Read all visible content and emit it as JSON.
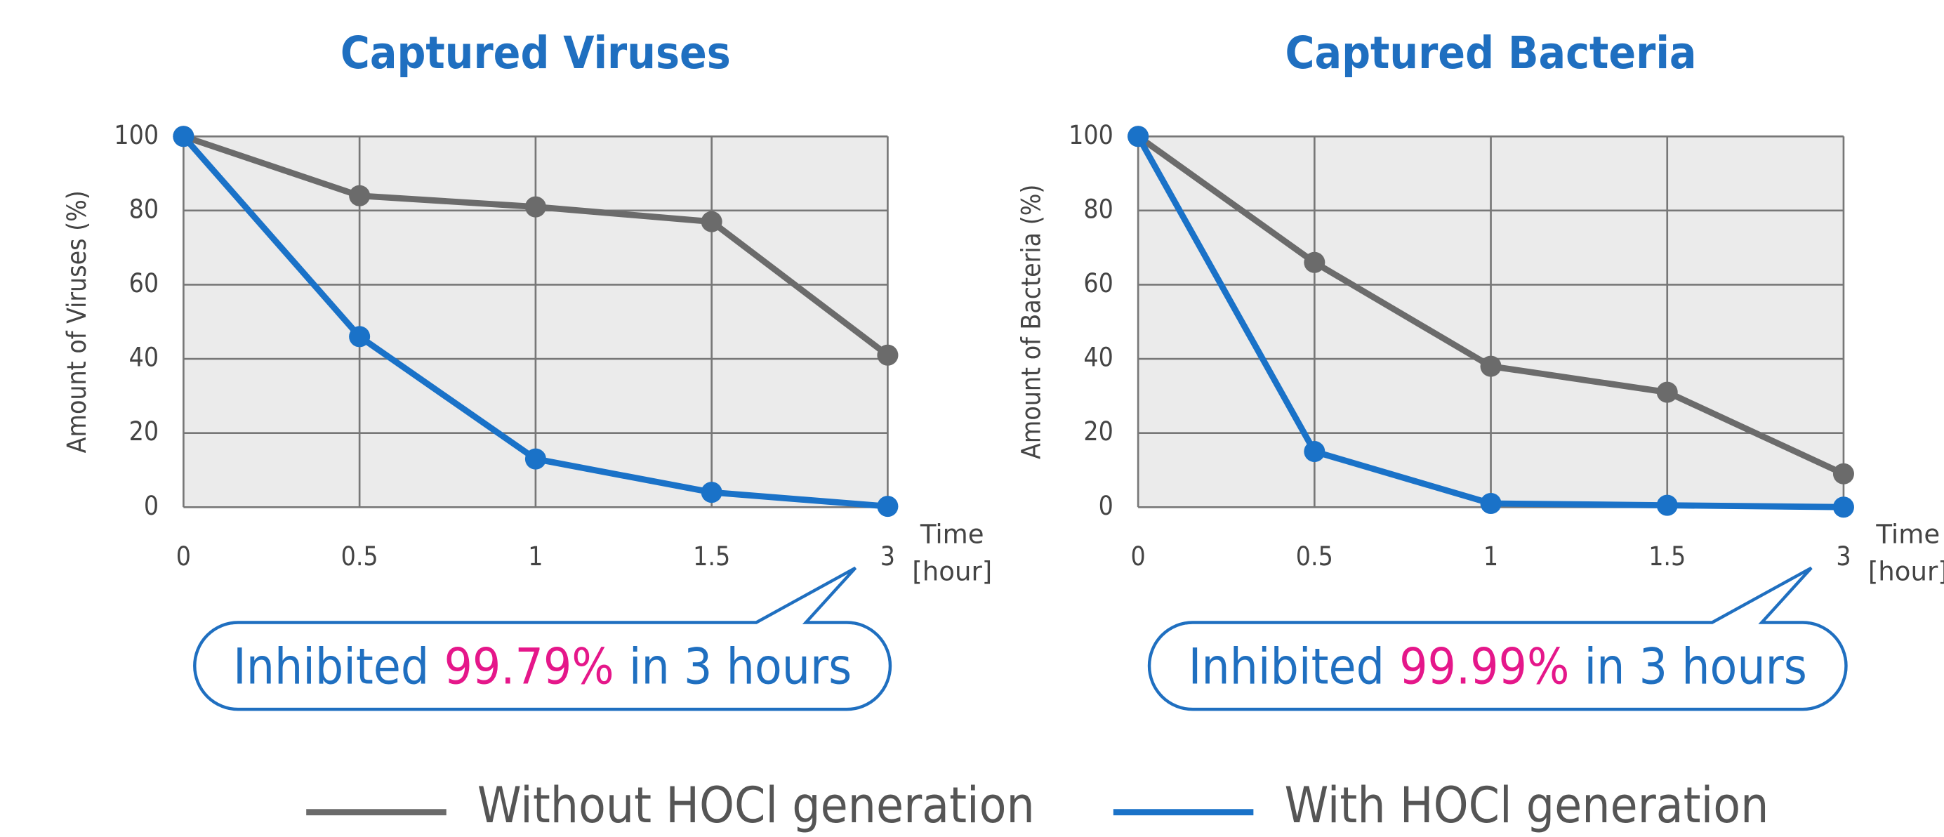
{
  "chart_data": [
    {
      "type": "line",
      "title": "Captured Viruses",
      "y_label": "Amount of Viruses (%)",
      "x_label": [
        "Time",
        "[hour]"
      ],
      "categories": [
        "0",
        "0.5",
        "1",
        "1.5",
        "3"
      ],
      "series": [
        {
          "name": "Without HOCl generation",
          "color": "#6b6b6b",
          "values": [
            100,
            84,
            81,
            77,
            41
          ]
        },
        {
          "name": "With HOCl generation",
          "color": "#1a72c8",
          "values": [
            100,
            46,
            13,
            4,
            0.21
          ]
        }
      ],
      "ylim": [
        0,
        100
      ],
      "yticks": [
        0,
        20,
        40,
        60,
        80,
        100
      ],
      "grid": true,
      "annotation": {
        "prefix": "Inhibited",
        "highlight": "99.79%",
        "suffix": "in 3 hours",
        "highlight_color": "#e5178a"
      }
    },
    {
      "type": "line",
      "title": "Captured Bacteria",
      "y_label": "Amount of Bacteria (%)",
      "x_label": [
        "Time",
        "[hour]"
      ],
      "categories": [
        "0",
        "0.5",
        "1",
        "1.5",
        "3"
      ],
      "series": [
        {
          "name": "Without HOCl generation",
          "color": "#6b6b6b",
          "values": [
            100,
            66,
            38,
            31,
            9
          ]
        },
        {
          "name": "With HOCl generation",
          "color": "#1a72c8",
          "values": [
            100,
            15,
            1,
            0.5,
            0.01
          ]
        }
      ],
      "ylim": [
        0,
        100
      ],
      "yticks": [
        0,
        20,
        40,
        60,
        80,
        100
      ],
      "grid": true,
      "annotation": {
        "prefix": "Inhibited",
        "highlight": "99.99%",
        "suffix": "in 3 hours",
        "highlight_color": "#e5178a"
      }
    }
  ]
}
